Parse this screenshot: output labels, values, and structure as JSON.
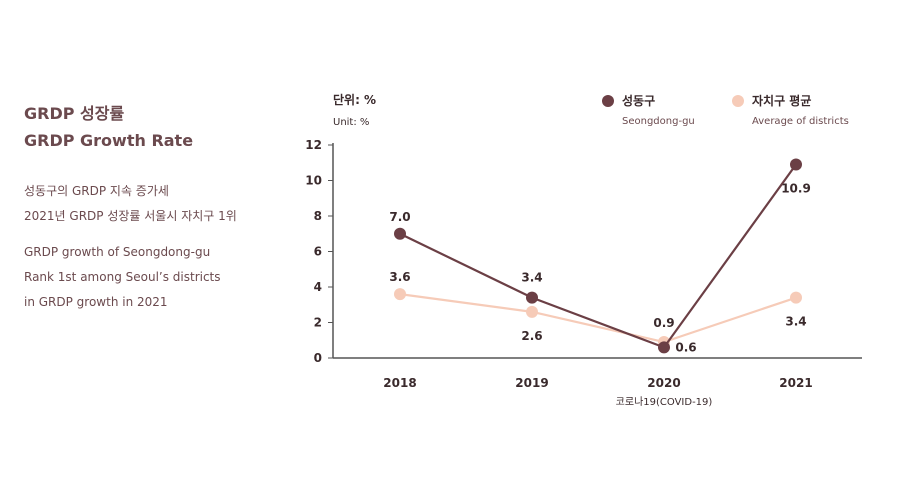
{
  "heading": {
    "title_ko": "GRDP 성장률",
    "title_en": "GRDP Growth Rate"
  },
  "description": {
    "ko_line1": "성동구의 GRDP 지속 증가세",
    "ko_line2": "2021년 GRDP 성장률 서울시 자치구 1위",
    "en_line1": "GRDP growth of Seongdong-gu",
    "en_line2": "Rank 1st among Seoul’s districts",
    "en_line3": "in GRDP growth in 2021"
  },
  "colors": {
    "series1": "#6b3f45",
    "series2": "#f6cbb8",
    "axis": "#555555"
  },
  "chart_data": {
    "type": "line",
    "title": "GRDP Growth Rate",
    "unit_ko": "단위: %",
    "unit_en": "Unit: %",
    "categories": [
      "2018",
      "2019",
      "2020",
      "2021"
    ],
    "category_note": "코로나19(COVID-19)",
    "ylim": [
      0,
      12
    ],
    "yticks": [
      "0",
      "2",
      "4",
      "6",
      "8",
      "10",
      "12"
    ],
    "series": [
      {
        "name": "성동구",
        "name_en": "Seongdong-gu",
        "values": [
          7.0,
          3.4,
          0.6,
          10.9
        ],
        "labels": [
          "7.0",
          "3.4",
          "0.6",
          "10.9"
        ]
      },
      {
        "name": "자치구 평균",
        "name_en": "Average of districts",
        "values": [
          3.6,
          2.6,
          0.9,
          3.4
        ],
        "labels": [
          "3.6",
          "2.6",
          "0.9",
          "3.4"
        ]
      }
    ]
  }
}
